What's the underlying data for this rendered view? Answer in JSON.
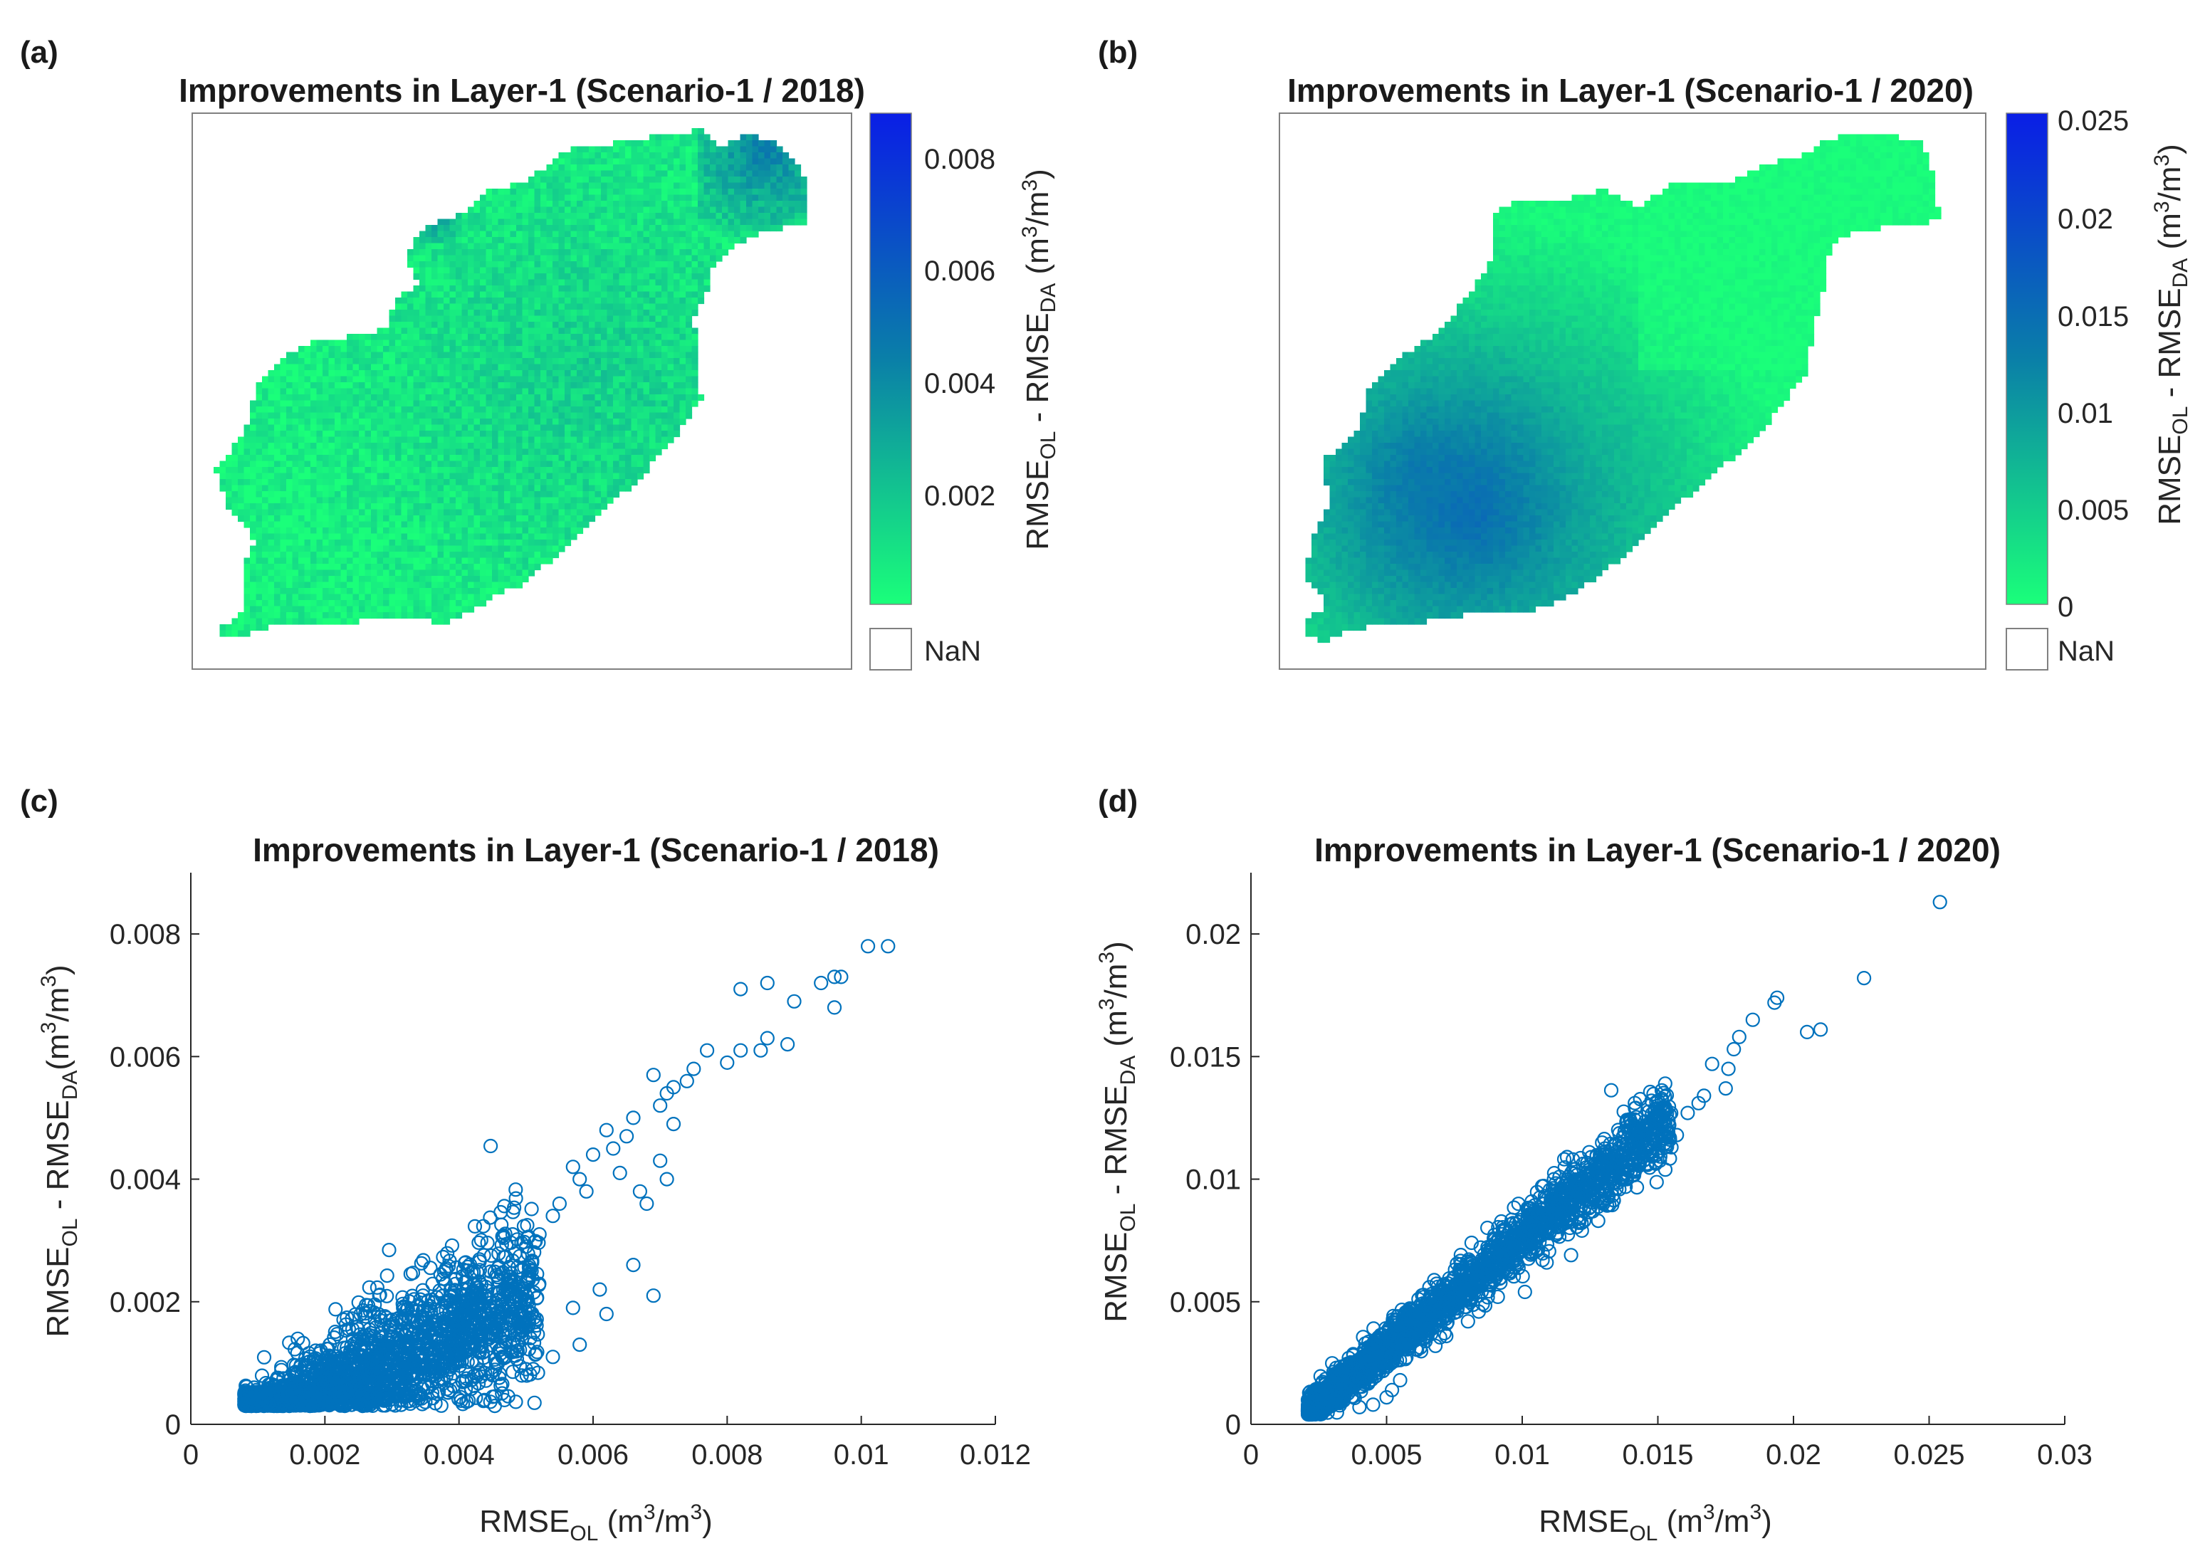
{
  "figure": {
    "panel_labels": [
      "(a)",
      "(b)",
      "(c)",
      "(d)"
    ]
  },
  "maps": [
    {
      "title": "Improvements in Layer-1 (Scenario-1 / 2018)",
      "colorbar_ticks": [
        "0.008",
        "0.006",
        "0.004",
        "0.002"
      ],
      "colorbar_label": {
        "main": "RMSE",
        "sub1": "OL",
        "mid": " - RMSE",
        "sub2": "DA",
        "units_pre": " (m",
        "sup": "3",
        "units_post": "/m",
        "sup2": "3",
        "close": ")"
      },
      "nan_label": "NaN",
      "colors": {
        "low": "#1aff7a",
        "mid": "#0a7fa8",
        "high": "#0a1ee6"
      }
    },
    {
      "title": "Improvements in Layer-1 (Scenario-1 / 2020)",
      "colorbar_ticks": [
        "0.025",
        "0.02",
        "0.015",
        "0.01",
        "0.005",
        "0"
      ],
      "colorbar_label": {
        "main": "RMSE",
        "sub1": "OL",
        "mid": " - RMSE",
        "sub2": "DA",
        "units_pre": " (m",
        "sup": "3",
        "units_post": "/m",
        "sup2": "3",
        "close": ")"
      },
      "nan_label": "NaN",
      "colors": {
        "low": "#1aff7a",
        "mid": "#0a7fa8",
        "high": "#0a1ee6"
      }
    }
  ],
  "chart_data": [
    {
      "type": "scatter",
      "title": "Improvements in Layer-1 (Scenario-1 / 2018)",
      "xlabel": {
        "main": "RMSE",
        "sub": "OL",
        "units_pre": " (m",
        "sup": "3",
        "units_post": "/m",
        "sup2": "3",
        "close": ")"
      },
      "ylabel": {
        "main": "RMSE",
        "sub1": "OL",
        "mid": " - RMSE",
        "sub2": "DA",
        "units_pre": "(m",
        "sup": "3",
        "units_post": "/m",
        "sup2": "3",
        "close": ")"
      },
      "xlim": [
        0,
        0.012
      ],
      "ylim": [
        0,
        0.009
      ],
      "xticks": [
        0,
        0.002,
        0.004,
        0.006,
        0.008,
        0.01,
        0.012
      ],
      "xtick_labels": [
        "0",
        "0.002",
        "0.004",
        "0.006",
        "0.008",
        "0.01",
        "0.012"
      ],
      "yticks": [
        0,
        0.002,
        0.004,
        0.006,
        0.008
      ],
      "ytick_labels": [
        "0",
        "0.002",
        "0.004",
        "0.006",
        "0.008"
      ],
      "marker_color": "#0072bd",
      "points": [
        [
          0.0104,
          0.0078
        ],
        [
          0.0101,
          0.0078
        ],
        [
          0.0097,
          0.0073
        ],
        [
          0.0096,
          0.0073
        ],
        [
          0.0094,
          0.0072
        ],
        [
          0.0096,
          0.0068
        ],
        [
          0.0086,
          0.0072
        ],
        [
          0.0082,
          0.0071
        ],
        [
          0.009,
          0.0069
        ],
        [
          0.0089,
          0.0062
        ],
        [
          0.0086,
          0.0063
        ],
        [
          0.0085,
          0.0061
        ],
        [
          0.0082,
          0.0061
        ],
        [
          0.008,
          0.0059
        ],
        [
          0.0077,
          0.0061
        ],
        [
          0.0075,
          0.0058
        ],
        [
          0.0074,
          0.0056
        ],
        [
          0.0072,
          0.0055
        ],
        [
          0.0071,
          0.0054
        ],
        [
          0.0069,
          0.0057
        ],
        [
          0.0072,
          0.0049
        ],
        [
          0.007,
          0.0052
        ],
        [
          0.0066,
          0.005
        ],
        [
          0.0065,
          0.0047
        ],
        [
          0.0063,
          0.0045
        ],
        [
          0.0064,
          0.0041
        ],
        [
          0.0062,
          0.0048
        ],
        [
          0.006,
          0.0044
        ],
        [
          0.0058,
          0.004
        ],
        [
          0.0057,
          0.0042
        ],
        [
          0.0059,
          0.0038
        ],
        [
          0.0068,
          0.0036
        ],
        [
          0.0067,
          0.0038
        ],
        [
          0.007,
          0.0043
        ],
        [
          0.0071,
          0.004
        ],
        [
          0.0055,
          0.0036
        ],
        [
          0.0054,
          0.0034
        ],
        [
          0.0052,
          0.0031
        ],
        [
          0.005,
          0.0029
        ],
        [
          0.0048,
          0.0031
        ],
        [
          0.0066,
          0.0026
        ],
        [
          0.0062,
          0.0018
        ],
        [
          0.0058,
          0.0013
        ],
        [
          0.0054,
          0.0011
        ],
        [
          0.0069,
          0.0021
        ],
        [
          0.0057,
          0.0019
        ],
        [
          0.0061,
          0.0022
        ],
        [
          0.005,
          0.0009
        ],
        [
          0.0045,
          0.0008
        ]
      ],
      "cloud": {
        "count": 2600,
        "x_min": 0.0008,
        "x_max": 0.0052,
        "slope": 0.52,
        "intercept": -0.00055,
        "spread": 0.00045,
        "y_min": 0.0003
      }
    },
    {
      "type": "scatter",
      "title": "Improvements in Layer-1 (Scenario-1 / 2020)",
      "xlabel": {
        "main": "RMSE",
        "sub": "OL",
        "units_pre": " (m",
        "sup": "3",
        "units_post": "/m",
        "sup2": "3",
        "close": ")"
      },
      "ylabel": {
        "main": "RMSE",
        "sub1": "OL",
        "mid": " - RMSE",
        "sub2": "DA",
        "units_pre": " (m",
        "sup": "3",
        "units_post": "/m",
        "sup2": "3",
        "close": ")"
      },
      "xlim": [
        0,
        0.03
      ],
      "ylim": [
        0,
        0.0225
      ],
      "xticks": [
        0,
        0.005,
        0.01,
        0.015,
        0.02,
        0.025,
        0.03
      ],
      "xtick_labels": [
        "0",
        "0.005",
        "0.01",
        "0.015",
        "0.02",
        "0.025",
        "0.03"
      ],
      "yticks": [
        0,
        0.005,
        0.01,
        0.015,
        0.02
      ],
      "ytick_labels": [
        "0",
        "0.005",
        "0.01",
        "0.015",
        "0.02"
      ],
      "marker_color": "#0072bd",
      "points": [
        [
          0.0254,
          0.0213
        ],
        [
          0.0226,
          0.0182
        ],
        [
          0.021,
          0.0161
        ],
        [
          0.0205,
          0.016
        ],
        [
          0.0194,
          0.0174
        ],
        [
          0.0193,
          0.0172
        ],
        [
          0.0185,
          0.0165
        ],
        [
          0.018,
          0.0158
        ],
        [
          0.0178,
          0.0153
        ],
        [
          0.0176,
          0.0145
        ],
        [
          0.0175,
          0.0137
        ],
        [
          0.017,
          0.0147
        ],
        [
          0.0167,
          0.0134
        ],
        [
          0.0165,
          0.0131
        ],
        [
          0.0161,
          0.0127
        ],
        [
          0.0157,
          0.0118
        ],
        [
          0.0155,
          0.0113
        ],
        [
          0.0148,
          0.011
        ],
        [
          0.0143,
          0.0106
        ],
        [
          0.014,
          0.0103
        ],
        [
          0.0131,
          0.0095
        ],
        [
          0.0128,
          0.0083
        ],
        [
          0.0122,
          0.0079
        ],
        [
          0.0118,
          0.0069
        ],
        [
          0.0109,
          0.0066
        ],
        [
          0.0101,
          0.0054
        ],
        [
          0.0091,
          0.0052
        ],
        [
          0.0084,
          0.0046
        ],
        [
          0.008,
          0.0042
        ],
        [
          0.0072,
          0.0036
        ],
        [
          0.0068,
          0.0032
        ],
        [
          0.0055,
          0.0018
        ],
        [
          0.0052,
          0.0014
        ],
        [
          0.005,
          0.0011
        ],
        [
          0.0045,
          0.0008
        ],
        [
          0.004,
          0.0007
        ]
      ],
      "cloud": {
        "count": 2400,
        "x_min": 0.0021,
        "x_max": 0.0155,
        "slope": 0.9,
        "intercept": -0.0014,
        "spread": 0.0005,
        "y_min": 0.0004
      }
    }
  ]
}
